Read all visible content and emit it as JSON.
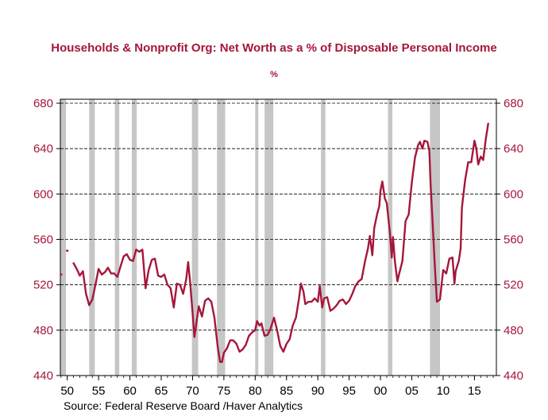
{
  "chart_data": {
    "type": "line",
    "title": "Households & Nonprofit Org: Net Worth as a % of Disposable Personal Income",
    "subtitle": "%",
    "source": "Source:  Federal Reserve Board /Haver Analytics",
    "xlabel": "",
    "ylabel": "",
    "xlim": [
      1948.9,
      2018.5
    ],
    "ylim": [
      440,
      680
    ],
    "y_ticks": [
      440,
      480,
      520,
      560,
      600,
      640,
      680
    ],
    "x_ticks": [
      1950,
      1955,
      1960,
      1965,
      1970,
      1975,
      1980,
      1985,
      1990,
      1995,
      2000,
      2005,
      2010,
      2015
    ],
    "x_tick_labels": [
      "50",
      "55",
      "60",
      "65",
      "70",
      "75",
      "80",
      "85",
      "90",
      "95",
      "00",
      "05",
      "10",
      "15"
    ],
    "grid": "horizontal dashed",
    "line_color": "#a5173a",
    "recession_color": "#c6c6c6",
    "recessions": [
      [
        1948.9,
        1949.8
      ],
      [
        1953.5,
        1954.4
      ],
      [
        1957.6,
        1958.3
      ],
      [
        1960.3,
        1961.1
      ],
      [
        1969.9,
        1970.9
      ],
      [
        1973.9,
        1975.2
      ],
      [
        1980.0,
        1980.5
      ],
      [
        1981.5,
        1982.9
      ],
      [
        1990.5,
        1991.2
      ],
      [
        2001.2,
        2001.9
      ],
      [
        2007.9,
        2009.5
      ]
    ],
    "series": [
      {
        "values": [
          [
            1949.0,
            529
          ],
          [
            1950.0,
            550
          ],
          [
            1951.0,
            539
          ],
          [
            1951.6,
            533
          ],
          [
            1952.0,
            528
          ],
          [
            1952.5,
            532
          ],
          [
            1953.0,
            512
          ],
          [
            1953.5,
            502
          ],
          [
            1954.0,
            507
          ],
          [
            1954.5,
            520
          ],
          [
            1955.0,
            534
          ],
          [
            1955.5,
            529
          ],
          [
            1956.0,
            531
          ],
          [
            1956.5,
            535
          ],
          [
            1957.0,
            530
          ],
          [
            1957.5,
            530
          ],
          [
            1958.0,
            527
          ],
          [
            1958.5,
            536
          ],
          [
            1959.0,
            545
          ],
          [
            1959.5,
            547
          ],
          [
            1960.0,
            542
          ],
          [
            1960.5,
            541
          ],
          [
            1961.0,
            551
          ],
          [
            1961.5,
            549
          ],
          [
            1962.0,
            551
          ],
          [
            1962.5,
            517
          ],
          [
            1963.0,
            533
          ],
          [
            1963.5,
            542
          ],
          [
            1964.0,
            543
          ],
          [
            1964.5,
            528
          ],
          [
            1965.0,
            527
          ],
          [
            1965.5,
            529
          ],
          [
            1966.0,
            520
          ],
          [
            1966.5,
            517
          ],
          [
            1967.0,
            500
          ],
          [
            1967.5,
            521
          ],
          [
            1968.0,
            520
          ],
          [
            1968.5,
            512
          ],
          [
            1969.0,
            525
          ],
          [
            1969.3,
            540
          ],
          [
            1969.6,
            523
          ],
          [
            1970.0,
            496
          ],
          [
            1970.3,
            474
          ],
          [
            1970.7,
            490
          ],
          [
            1971.0,
            501
          ],
          [
            1971.5,
            492
          ],
          [
            1972.0,
            506
          ],
          [
            1972.5,
            508
          ],
          [
            1973.0,
            505
          ],
          [
            1973.5,
            491
          ],
          [
            1974.0,
            466
          ],
          [
            1974.4,
            452
          ],
          [
            1974.7,
            452
          ],
          [
            1975.0,
            460
          ],
          [
            1975.5,
            464
          ],
          [
            1976.0,
            471
          ],
          [
            1976.5,
            471
          ],
          [
            1977.0,
            468
          ],
          [
            1977.5,
            461
          ],
          [
            1978.0,
            463
          ],
          [
            1978.5,
            467
          ],
          [
            1979.0,
            475
          ],
          [
            1979.5,
            478
          ],
          [
            1980.0,
            480
          ],
          [
            1980.3,
            488
          ],
          [
            1980.7,
            484
          ],
          [
            1981.0,
            486
          ],
          [
            1981.5,
            475
          ],
          [
            1982.0,
            476
          ],
          [
            1982.5,
            482
          ],
          [
            1983.0,
            491
          ],
          [
            1983.5,
            480
          ],
          [
            1984.0,
            466
          ],
          [
            1984.5,
            461
          ],
          [
            1985.0,
            468
          ],
          [
            1985.5,
            472
          ],
          [
            1986.0,
            484
          ],
          [
            1986.5,
            491
          ],
          [
            1987.0,
            508
          ],
          [
            1987.3,
            521
          ],
          [
            1987.7,
            514
          ],
          [
            1988.0,
            503
          ],
          [
            1988.5,
            505
          ],
          [
            1989.0,
            505
          ],
          [
            1989.5,
            508
          ],
          [
            1990.0,
            505
          ],
          [
            1990.3,
            519
          ],
          [
            1990.7,
            500
          ],
          [
            1991.0,
            508
          ],
          [
            1991.5,
            509
          ],
          [
            1992.0,
            497
          ],
          [
            1992.5,
            499
          ],
          [
            1993.0,
            502
          ],
          [
            1993.5,
            506
          ],
          [
            1994.0,
            507
          ],
          [
            1994.5,
            503
          ],
          [
            1995.0,
            506
          ],
          [
            1995.5,
            512
          ],
          [
            1996.0,
            519
          ],
          [
            1996.5,
            523
          ],
          [
            1997.0,
            525
          ],
          [
            1997.5,
            540
          ],
          [
            1998.0,
            552
          ],
          [
            1998.3,
            563
          ],
          [
            1998.7,
            546
          ],
          [
            1999.0,
            570
          ],
          [
            1999.5,
            583
          ],
          [
            1999.8,
            589
          ],
          [
            2000.0,
            603
          ],
          [
            2000.3,
            611
          ],
          [
            2000.7,
            596
          ],
          [
            2001.0,
            592
          ],
          [
            2001.5,
            566
          ],
          [
            2001.8,
            544
          ],
          [
            2002.0,
            562
          ],
          [
            2002.3,
            541
          ],
          [
            2002.7,
            523
          ],
          [
            2003.0,
            530
          ],
          [
            2003.5,
            541
          ],
          [
            2004.0,
            576
          ],
          [
            2004.5,
            582
          ],
          [
            2005.0,
            610
          ],
          [
            2005.5,
            632
          ],
          [
            2006.0,
            643
          ],
          [
            2006.3,
            646
          ],
          [
            2006.7,
            640
          ],
          [
            2007.0,
            647
          ],
          [
            2007.5,
            646
          ],
          [
            2007.8,
            638
          ],
          [
            2008.0,
            608
          ],
          [
            2008.3,
            578
          ],
          [
            2008.7,
            534
          ],
          [
            2009.0,
            505
          ],
          [
            2009.5,
            507
          ],
          [
            2010.0,
            533
          ],
          [
            2010.5,
            530
          ],
          [
            2011.0,
            543
          ],
          [
            2011.5,
            544
          ],
          [
            2011.8,
            521
          ],
          [
            2012.0,
            532
          ],
          [
            2012.5,
            541
          ],
          [
            2012.8,
            552
          ],
          [
            2013.0,
            588
          ],
          [
            2013.5,
            612
          ],
          [
            2014.0,
            628
          ],
          [
            2014.5,
            628
          ],
          [
            2015.0,
            647
          ],
          [
            2015.3,
            640
          ],
          [
            2015.6,
            626
          ],
          [
            2016.0,
            633
          ],
          [
            2016.4,
            630
          ],
          [
            2016.8,
            648
          ],
          [
            2017.2,
            662
          ]
        ]
      }
    ]
  }
}
